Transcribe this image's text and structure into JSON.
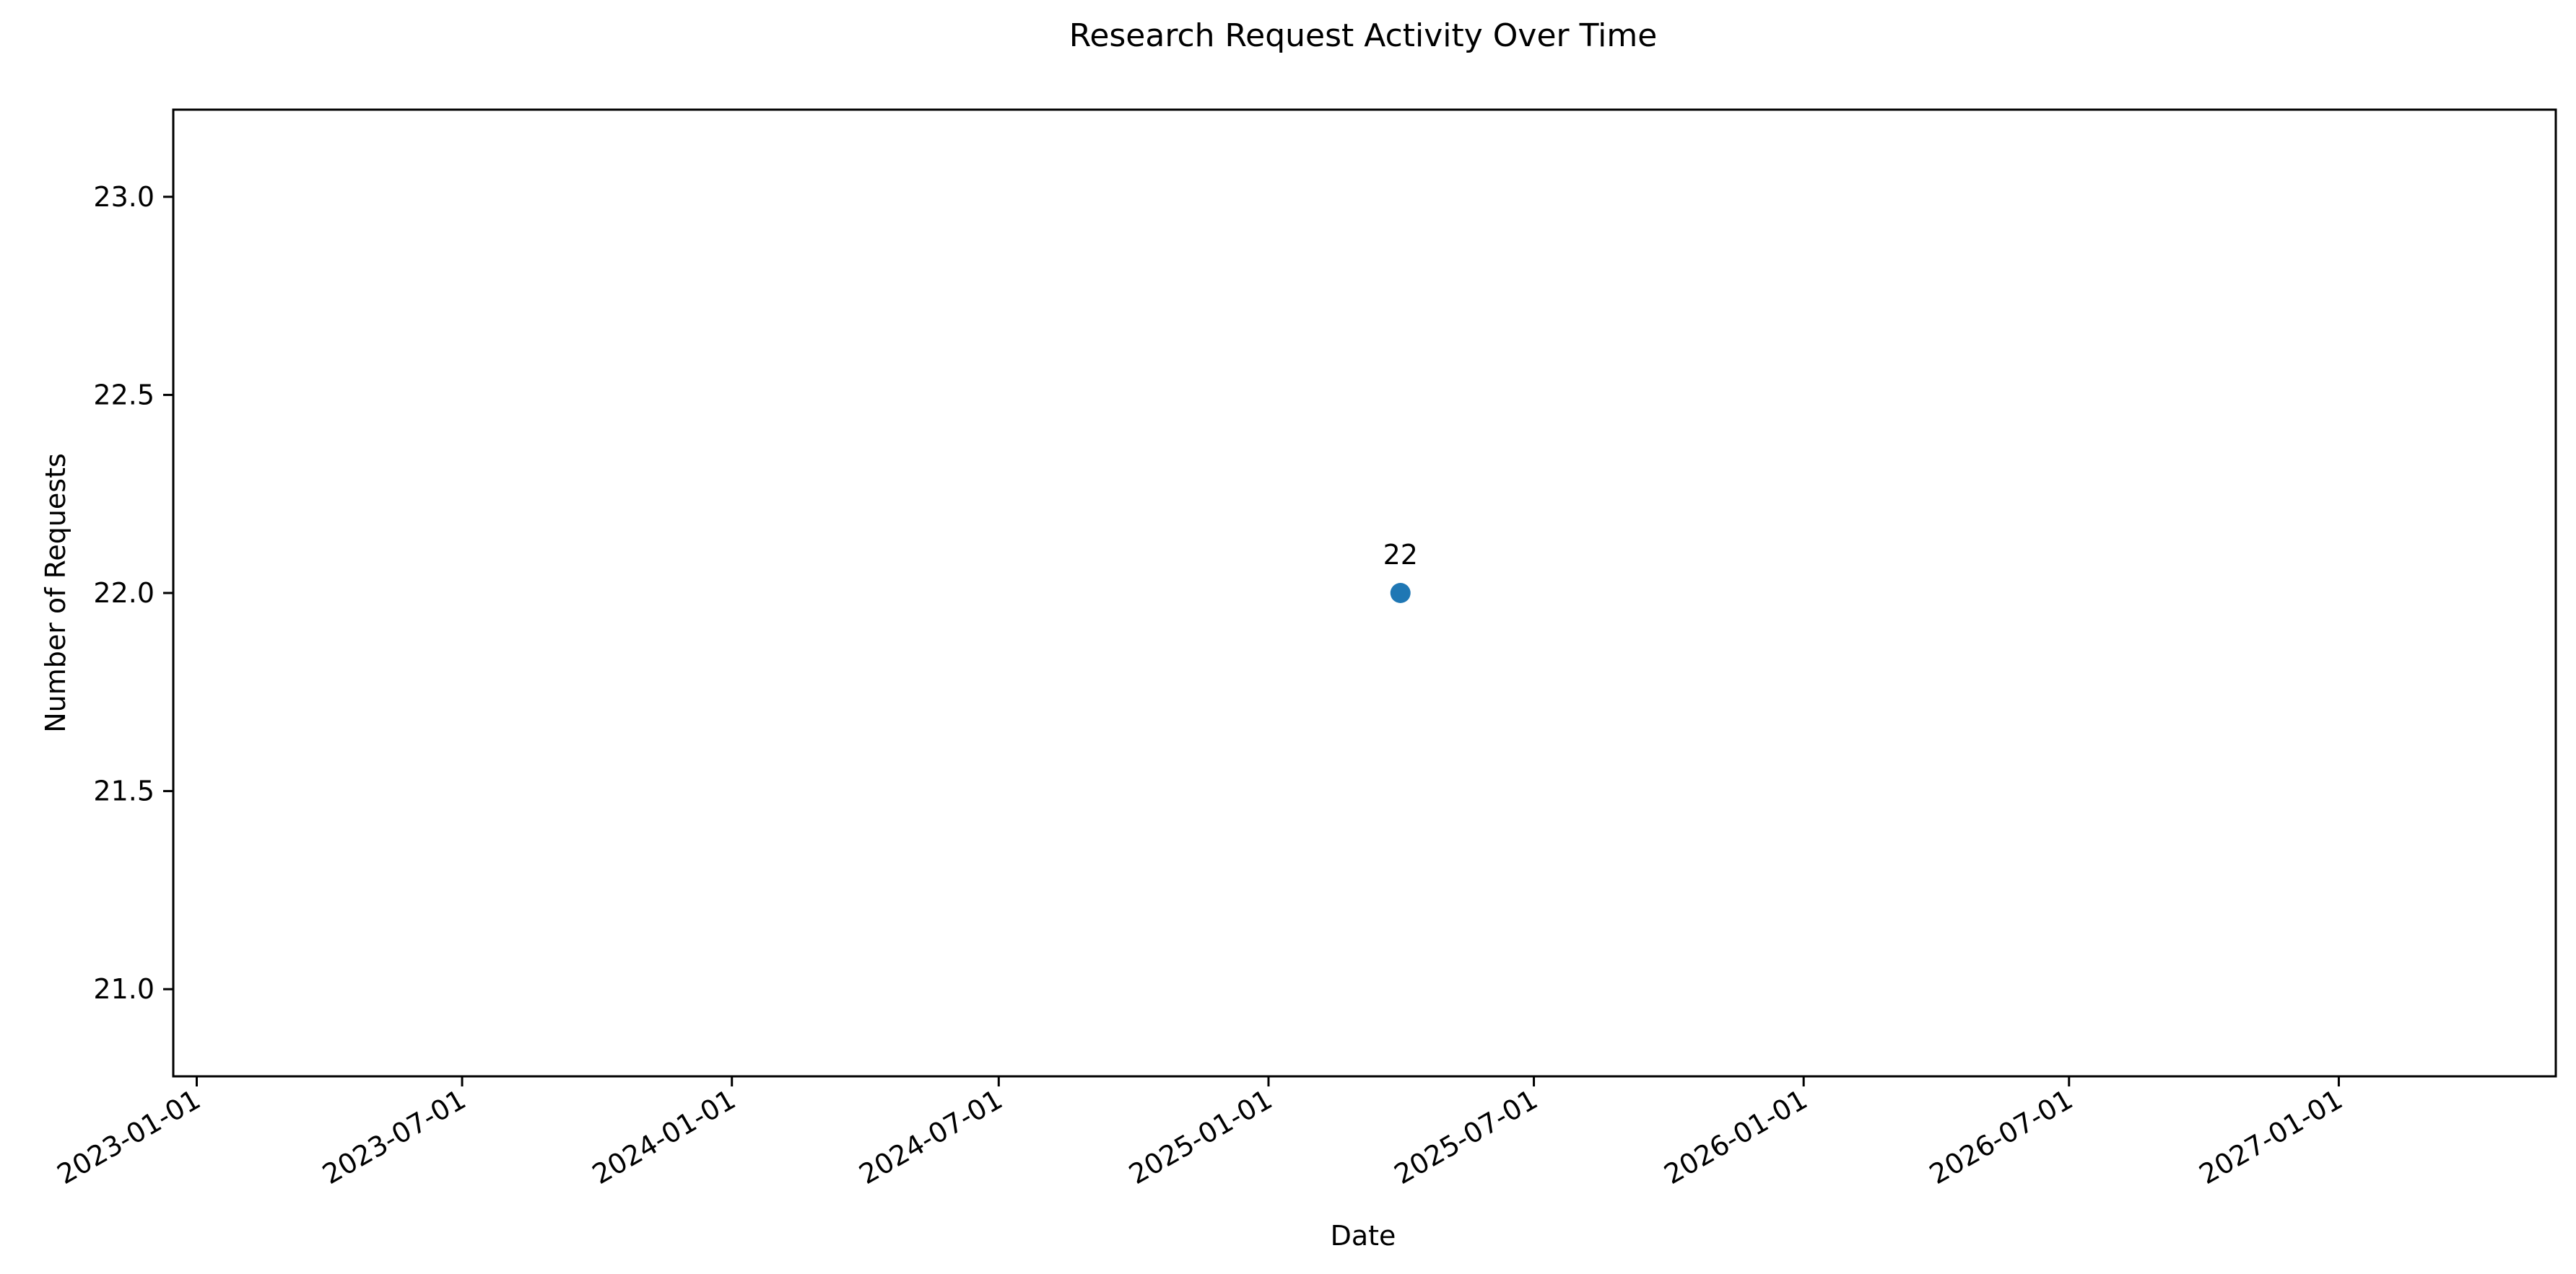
{
  "chart_data": {
    "type": "scatter",
    "title": "Research Request Activity Over Time",
    "xlabel": "Date",
    "ylabel": "Number of Requests",
    "x_type": "date",
    "xlim": [
      "2022-12-16",
      "2027-05-29"
    ],
    "ylim": [
      20.78,
      23.22
    ],
    "x_ticks": [
      "2023-01-01",
      "2023-07-01",
      "2024-01-01",
      "2024-07-01",
      "2025-01-01",
      "2025-07-01",
      "2026-01-01",
      "2026-07-01",
      "2027-01-01"
    ],
    "y_ticks": [
      "21.0",
      "21.5",
      "22.0",
      "22.5",
      "23.0"
    ],
    "grid": false,
    "legend": "none",
    "series": [
      {
        "color": "#1f77b4",
        "points": [
          {
            "x": "2025-04-01",
            "y": 22,
            "label": "22"
          }
        ]
      }
    ]
  }
}
